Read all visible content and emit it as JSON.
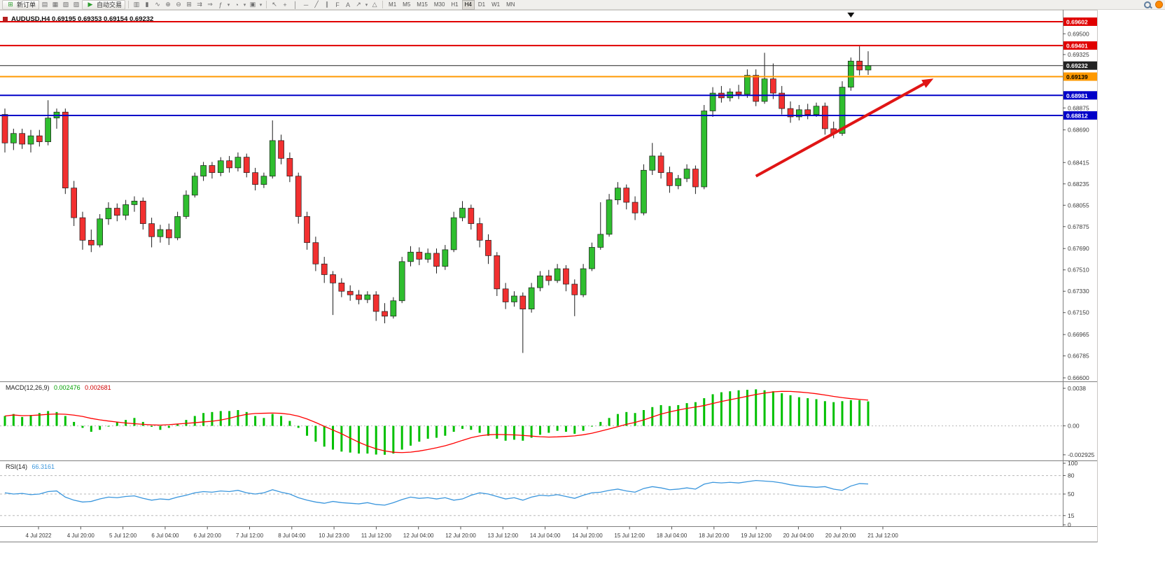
{
  "toolbar": {
    "new_order_label": "新订单",
    "new_order_icon_glyph": "⊞",
    "autotrade_label": "自动交易",
    "autotrade_icon_glyph": "▶",
    "icons_left": [
      {
        "name": "market-watch-icon",
        "glyph": "▤"
      },
      {
        "name": "data-window-icon",
        "glyph": "▦"
      },
      {
        "name": "navigator-icon",
        "glyph": "▧"
      },
      {
        "name": "terminal-icon",
        "glyph": "▨"
      }
    ],
    "icons_chart": [
      {
        "name": "bar-chart-icon",
        "glyph": "▥"
      },
      {
        "name": "candlestick-chart-icon",
        "glyph": "▮"
      },
      {
        "name": "line-chart-icon",
        "glyph": "∿"
      },
      {
        "name": "zoom-in-icon",
        "glyph": "⊕"
      },
      {
        "name": "zoom-out-icon",
        "glyph": "⊖"
      },
      {
        "name": "tile-windows-icon",
        "glyph": "⊞"
      },
      {
        "name": "auto-scroll-icon",
        "glyph": "⇉"
      },
      {
        "name": "chart-shift-icon",
        "glyph": "⇒"
      },
      {
        "name": "indicators-icon",
        "glyph": "ƒ",
        "caret": true
      },
      {
        "name": "periods-icon",
        "glyph": "◔",
        "caret": true
      },
      {
        "name": "templates-icon",
        "glyph": "▣",
        "caret": true
      }
    ],
    "icons_tools": [
      {
        "name": "cursor-icon",
        "glyph": "↖"
      },
      {
        "name": "crosshair-icon",
        "glyph": "+"
      },
      {
        "name": "vertical-line-icon",
        "glyph": "│"
      },
      {
        "name": "horizontal-line-icon",
        "glyph": "─"
      },
      {
        "name": "trendline-icon",
        "glyph": "╱"
      },
      {
        "name": "channel-icon",
        "glyph": "∥"
      },
      {
        "name": "fibonacci-icon",
        "glyph": "F"
      },
      {
        "name": "text-label-icon",
        "glyph": "A"
      },
      {
        "name": "arrow-tool-icon",
        "glyph": "↗",
        "caret": true
      },
      {
        "name": "shapes-icon",
        "glyph": "△"
      }
    ],
    "timeframes": [
      "M1",
      "M5",
      "M15",
      "M30",
      "H1",
      "H4",
      "D1",
      "W1",
      "MN"
    ],
    "active_timeframe": "H4",
    "right_icons": [
      {
        "name": "search-icon",
        "shape": "magnifier"
      },
      {
        "name": "community-icon",
        "shape": "dot"
      }
    ]
  },
  "chart": {
    "title": "AUDUSD,H4 0.69195 0.69353 0.69154 0.69232",
    "macd_label": "MACD(12,26,9)",
    "macd_main_value": "0.002476",
    "macd_signal_value": "0.002681",
    "rsi_label": "RSI(14)",
    "rsi_value": "66.3161",
    "colors": {
      "bull": "#2fbe2f",
      "bear": "#f23030",
      "wick": "#1c1c1c",
      "macd_hist": "#00c000",
      "macd_signal": "#ff0000",
      "rsi_line": "#3a96dd",
      "axis_text": "#3a3a3a",
      "separator": "#808080",
      "arrow": "#e01515"
    },
    "price_levels": [
      {
        "price": 0.69602,
        "label": "0.69602",
        "line": "#e00000",
        "text_color": "#ffffff",
        "thick": 2
      },
      {
        "price": 0.69401,
        "label": "0.69401",
        "line": "#e00000",
        "text_color": "#ffffff",
        "thick": 2
      },
      {
        "price": 0.69232,
        "label": "0.69232",
        "line": "#222222",
        "text_color": "#ffffff",
        "thick": 1,
        "current": true
      },
      {
        "price": 0.69139,
        "label": "0.69139",
        "line": "#ff9900",
        "text_color": "#000000",
        "thick": 2
      },
      {
        "price": 0.68981,
        "label": "0.68981",
        "line": "#0000c8",
        "text_color": "#ffffff",
        "thick": 2
      },
      {
        "price": 0.68812,
        "label": "0.68812",
        "line": "#0000c8",
        "text_color": "#ffffff",
        "thick": 2
      }
    ]
  },
  "chart_data": {
    "type": "candlestick",
    "title": "AUDUSD,H4",
    "symbol": "AUDUSD",
    "period": "H4",
    "ylim": [
      0.666,
      0.69602
    ],
    "price_ticks": [
      "0.69500",
      "0.69325",
      "0.68875",
      "0.68690",
      "0.68415",
      "0.68235",
      "0.68055",
      "0.67875",
      "0.67690",
      "0.67510",
      "0.67330",
      "0.67150",
      "0.66965",
      "0.66785",
      "0.66600"
    ],
    "macd_axis": [
      {
        "value": 0.0038,
        "text": "0.0038"
      },
      {
        "value": 0,
        "text": "0.00"
      },
      {
        "value": -0.002925,
        "text": "-0.002925"
      }
    ],
    "rsi_axis": [
      {
        "value": 100,
        "text": "100"
      },
      {
        "value": 80,
        "text": "80"
      },
      {
        "value": 50,
        "text": "50"
      },
      {
        "value": 15,
        "text": "15"
      },
      {
        "value": 0,
        "text": "0"
      }
    ],
    "rsi_levels": [
      80,
      50,
      15
    ],
    "time_labels": [
      "4 Jul 2022",
      "4 Jul 20:00",
      "5 Jul 12:00",
      "6 Jul 04:00",
      "6 Jul 20:00",
      "7 Jul 12:00",
      "8 Jul 04:00",
      "10 Jul 23:00",
      "11 Jul 12:00",
      "12 Jul 04:00",
      "12 Jul 20:00",
      "13 Jul 12:00",
      "14 Jul 04:00",
      "14 Jul 20:00",
      "15 Jul 12:00",
      "18 Jul 04:00",
      "18 Jul 20:00",
      "19 Jul 12:00",
      "20 Jul 04:00",
      "20 Jul 20:00",
      "21 Jul 12:00"
    ],
    "trend_arrow": {
      "from_index": 87,
      "from_price": 0.683,
      "to_index": 107,
      "to_price": 0.691,
      "direction": "up"
    },
    "top_marker_index": 98,
    "indicators": {
      "macd": {
        "params": "12,26,9",
        "main": 0.002476,
        "signal": 0.002681
      },
      "rsi": {
        "period": 14,
        "value": 66.3161
      }
    },
    "ohlc": [
      [
        0.6882,
        0.6887,
        0.685,
        0.6858
      ],
      [
        0.6858,
        0.687,
        0.6852,
        0.6866
      ],
      [
        0.6866,
        0.687,
        0.6853,
        0.6857
      ],
      [
        0.6857,
        0.6869,
        0.685,
        0.6864
      ],
      [
        0.6864,
        0.6869,
        0.6855,
        0.6859
      ],
      [
        0.6859,
        0.6894,
        0.6856,
        0.6879
      ],
      [
        0.6879,
        0.6887,
        0.687,
        0.6884
      ],
      [
        0.6884,
        0.6887,
        0.6815,
        0.682
      ],
      [
        0.682,
        0.6826,
        0.6788,
        0.6795
      ],
      [
        0.6795,
        0.68,
        0.6768,
        0.6776
      ],
      [
        0.6776,
        0.6785,
        0.6766,
        0.6772
      ],
      [
        0.6772,
        0.6798,
        0.677,
        0.6794
      ],
      [
        0.6794,
        0.6808,
        0.6789,
        0.6803
      ],
      [
        0.6803,
        0.6807,
        0.6792,
        0.6797
      ],
      [
        0.6797,
        0.681,
        0.6793,
        0.6806
      ],
      [
        0.6806,
        0.6813,
        0.68,
        0.6809
      ],
      [
        0.6809,
        0.6812,
        0.6785,
        0.679
      ],
      [
        0.679,
        0.6795,
        0.677,
        0.6779
      ],
      [
        0.6779,
        0.6789,
        0.6774,
        0.6785
      ],
      [
        0.6785,
        0.679,
        0.6772,
        0.6778
      ],
      [
        0.6778,
        0.68,
        0.6776,
        0.6796
      ],
      [
        0.6796,
        0.6818,
        0.6794,
        0.6814
      ],
      [
        0.6814,
        0.6833,
        0.6812,
        0.683
      ],
      [
        0.683,
        0.6842,
        0.6826,
        0.6839
      ],
      [
        0.6839,
        0.6842,
        0.6828,
        0.6833
      ],
      [
        0.6833,
        0.6846,
        0.683,
        0.6843
      ],
      [
        0.6843,
        0.6847,
        0.6833,
        0.6837
      ],
      [
        0.6837,
        0.685,
        0.6834,
        0.6846
      ],
      [
        0.6846,
        0.6849,
        0.6829,
        0.6833
      ],
      [
        0.6833,
        0.6837,
        0.6818,
        0.6823
      ],
      [
        0.6823,
        0.6833,
        0.682,
        0.683
      ],
      [
        0.683,
        0.6877,
        0.6828,
        0.686
      ],
      [
        0.686,
        0.6865,
        0.684,
        0.6845
      ],
      [
        0.6845,
        0.685,
        0.6825,
        0.683
      ],
      [
        0.683,
        0.6833,
        0.679,
        0.6796
      ],
      [
        0.6796,
        0.68,
        0.6768,
        0.6774
      ],
      [
        0.6774,
        0.6779,
        0.675,
        0.6756
      ],
      [
        0.6756,
        0.6762,
        0.674,
        0.6747
      ],
      [
        0.6747,
        0.675,
        0.6713,
        0.674
      ],
      [
        0.674,
        0.6744,
        0.6728,
        0.6733
      ],
      [
        0.6733,
        0.6738,
        0.6725,
        0.673
      ],
      [
        0.673,
        0.6734,
        0.6722,
        0.6726
      ],
      [
        0.6726,
        0.6733,
        0.6723,
        0.673
      ],
      [
        0.673,
        0.6733,
        0.6708,
        0.6716
      ],
      [
        0.6716,
        0.6723,
        0.6706,
        0.6712
      ],
      [
        0.6712,
        0.6728,
        0.671,
        0.6725
      ],
      [
        0.6725,
        0.6762,
        0.6723,
        0.6758
      ],
      [
        0.6758,
        0.6771,
        0.6754,
        0.6766
      ],
      [
        0.6766,
        0.677,
        0.6755,
        0.676
      ],
      [
        0.676,
        0.6769,
        0.6757,
        0.6765
      ],
      [
        0.6765,
        0.6769,
        0.6748,
        0.6754
      ],
      [
        0.6754,
        0.6772,
        0.6751,
        0.6768
      ],
      [
        0.6768,
        0.68,
        0.6766,
        0.6795
      ],
      [
        0.6795,
        0.6809,
        0.6792,
        0.6803
      ],
      [
        0.6803,
        0.6806,
        0.6785,
        0.679
      ],
      [
        0.679,
        0.6795,
        0.677,
        0.6776
      ],
      [
        0.6776,
        0.6781,
        0.6756,
        0.6763
      ],
      [
        0.6763,
        0.6766,
        0.6729,
        0.6735
      ],
      [
        0.6735,
        0.674,
        0.6718,
        0.6724
      ],
      [
        0.6724,
        0.6733,
        0.672,
        0.6729
      ],
      [
        0.6729,
        0.6732,
        0.6681,
        0.6718
      ],
      [
        0.6718,
        0.674,
        0.6715,
        0.6736
      ],
      [
        0.6736,
        0.675,
        0.6733,
        0.6746
      ],
      [
        0.6746,
        0.6751,
        0.6738,
        0.6742
      ],
      [
        0.6742,
        0.6756,
        0.674,
        0.6752
      ],
      [
        0.6752,
        0.6755,
        0.6733,
        0.6739
      ],
      [
        0.6739,
        0.6743,
        0.6712,
        0.673
      ],
      [
        0.673,
        0.6756,
        0.6728,
        0.6752
      ],
      [
        0.6752,
        0.6774,
        0.675,
        0.677
      ],
      [
        0.677,
        0.6808,
        0.6768,
        0.6781
      ],
      [
        0.6781,
        0.6815,
        0.6779,
        0.681
      ],
      [
        0.681,
        0.6825,
        0.6806,
        0.682
      ],
      [
        0.682,
        0.6823,
        0.6802,
        0.6808
      ],
      [
        0.6808,
        0.6813,
        0.6793,
        0.6799
      ],
      [
        0.6799,
        0.684,
        0.6797,
        0.6835
      ],
      [
        0.6835,
        0.6858,
        0.6831,
        0.6847
      ],
      [
        0.6847,
        0.685,
        0.6828,
        0.6833
      ],
      [
        0.6833,
        0.6838,
        0.6816,
        0.6822
      ],
      [
        0.6822,
        0.6831,
        0.6819,
        0.6828
      ],
      [
        0.6828,
        0.684,
        0.6825,
        0.6836
      ],
      [
        0.6836,
        0.6839,
        0.6815,
        0.6821
      ],
      [
        0.6821,
        0.689,
        0.6819,
        0.6885
      ],
      [
        0.6885,
        0.6905,
        0.688,
        0.69
      ],
      [
        0.69,
        0.6906,
        0.6892,
        0.6896
      ],
      [
        0.6896,
        0.6904,
        0.6893,
        0.6901
      ],
      [
        0.6901,
        0.6907,
        0.6895,
        0.6899
      ],
      [
        0.6899,
        0.692,
        0.6896,
        0.6915
      ],
      [
        0.6915,
        0.692,
        0.6889,
        0.6893
      ],
      [
        0.6893,
        0.6934,
        0.6891,
        0.6912
      ],
      [
        0.6912,
        0.6925,
        0.6895,
        0.69
      ],
      [
        0.69,
        0.6906,
        0.6882,
        0.6887
      ],
      [
        0.6887,
        0.6893,
        0.6875,
        0.688
      ],
      [
        0.688,
        0.689,
        0.6877,
        0.6886
      ],
      [
        0.6886,
        0.6891,
        0.6878,
        0.6882
      ],
      [
        0.6882,
        0.6892,
        0.688,
        0.6889
      ],
      [
        0.6889,
        0.6892,
        0.6865,
        0.687
      ],
      [
        0.687,
        0.6876,
        0.6862,
        0.6866
      ],
      [
        0.6866,
        0.691,
        0.6864,
        0.6905
      ],
      [
        0.6905,
        0.693,
        0.6902,
        0.6927
      ],
      [
        0.6927,
        0.69395,
        0.6915,
        0.69195
      ],
      [
        0.69195,
        0.69353,
        0.69154,
        0.69232
      ]
    ],
    "macd_hist": [
      0.001,
      0.0012,
      0.0009,
      0.0011,
      0.0013,
      0.0015,
      0.0014,
      0.001,
      0.0004,
      -0.0002,
      -0.0006,
      -0.0004,
      0.0,
      0.0004,
      0.0006,
      0.0008,
      0.0004,
      -0.0001,
      -0.0004,
      -0.0002,
      0.0002,
      0.0006,
      0.001,
      0.0013,
      0.0014,
      0.0015,
      0.0015,
      0.0016,
      0.0014,
      0.001,
      0.0008,
      0.0012,
      0.001,
      0.0005,
      -0.0002,
      -0.001,
      -0.0016,
      -0.0021,
      -0.0024,
      -0.0026,
      -0.0027,
      -0.0028,
      -0.0028,
      -0.0029,
      -0.00292,
      -0.0028,
      -0.0024,
      -0.002,
      -0.0016,
      -0.0013,
      -0.0012,
      -0.001,
      -0.0006,
      -0.0003,
      -0.0004,
      -0.0007,
      -0.001,
      -0.0013,
      -0.0015,
      -0.0014,
      -0.0015,
      -0.0012,
      -0.0009,
      -0.0007,
      -0.0005,
      -0.0006,
      -0.0008,
      -0.0005,
      0.0,
      0.0004,
      0.0008,
      0.0012,
      0.0014,
      0.0013,
      0.0016,
      0.0019,
      0.0021,
      0.002,
      0.0021,
      0.0023,
      0.0024,
      0.0028,
      0.0032,
      0.0034,
      0.0035,
      0.0036,
      0.00365,
      0.0037,
      0.0036,
      0.0035,
      0.0033,
      0.0031,
      0.0029,
      0.0028,
      0.0027,
      0.0025,
      0.0024,
      0.0025,
      0.0026,
      0.0026,
      0.002476
    ],
    "rsi": [
      52,
      50,
      51,
      49,
      50,
      54,
      55,
      45,
      40,
      37,
      38,
      42,
      45,
      44,
      46,
      47,
      43,
      40,
      42,
      41,
      45,
      48,
      52,
      54,
      53,
      55,
      54,
      56,
      52,
      50,
      52,
      57,
      53,
      50,
      44,
      40,
      37,
      35,
      38,
      36,
      35,
      34,
      36,
      33,
      32,
      36,
      41,
      45,
      43,
      44,
      42,
      44,
      40,
      42,
      48,
      52,
      50,
      46,
      42,
      44,
      40,
      45,
      48,
      47,
      49,
      46,
      43,
      48,
      52,
      53,
      56,
      58,
      55,
      53,
      59,
      62,
      60,
      57,
      58,
      60,
      58,
      66,
      69,
      68,
      69,
      68,
      70,
      72,
      71,
      70,
      68,
      65,
      63,
      62,
      61,
      62,
      58,
      56,
      63,
      67,
      66.3
    ]
  }
}
